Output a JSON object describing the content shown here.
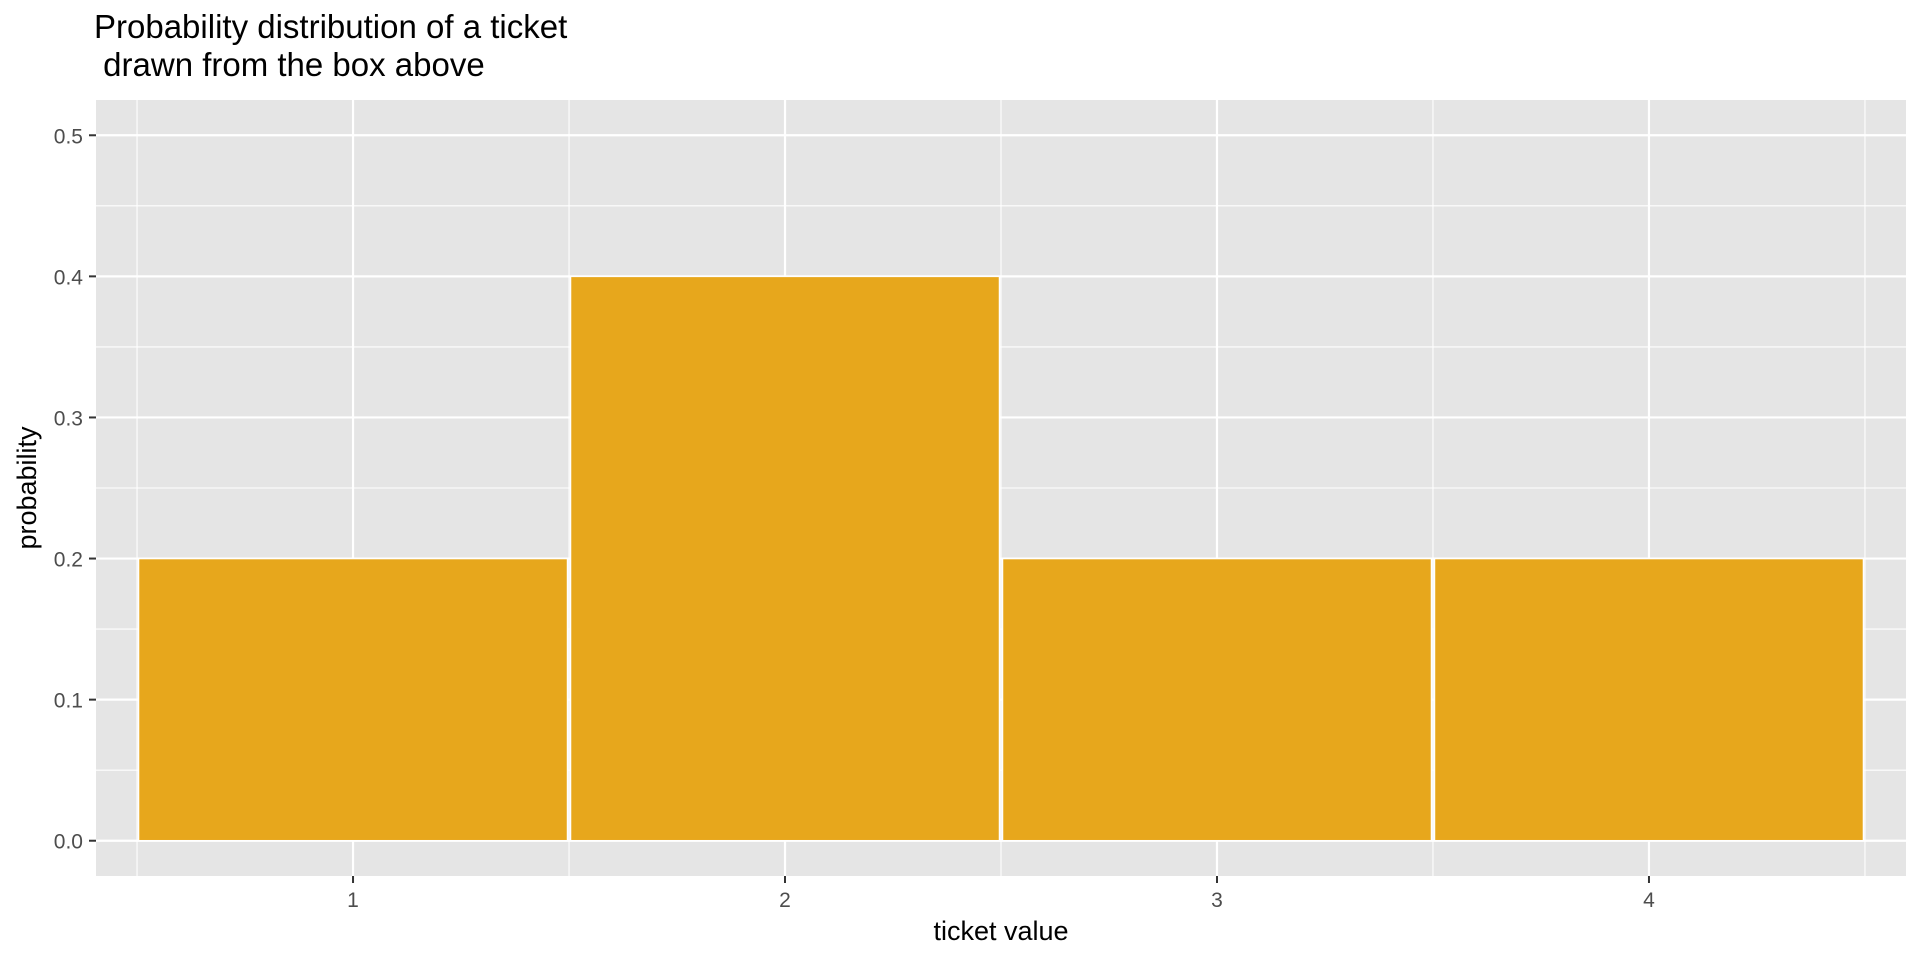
{
  "chart_data": {
    "type": "bar",
    "title": "Probability distribution of a ticket\n drawn from the box above",
    "xlabel": "ticket value",
    "ylabel": "probability",
    "categories": [
      "1",
      "2",
      "3",
      "4"
    ],
    "values": [
      0.2,
      0.4,
      0.2,
      0.2
    ],
    "ylim": [
      0,
      0.5
    ],
    "xlim": [
      0.5,
      4.5
    ],
    "yticks": [
      "0.0",
      "0.1",
      "0.2",
      "0.3",
      "0.4",
      "0.5"
    ],
    "grid": true,
    "legend": "none",
    "colors": {
      "bar_fill": "#E7A71C",
      "bar_outline": "#FFFFFF",
      "panel_bg": "#E5E5E5",
      "gridline": "#FFFFFF",
      "axis_text": "#4D4D4D",
      "axis_title": "#000000"
    }
  }
}
